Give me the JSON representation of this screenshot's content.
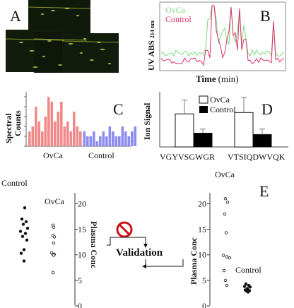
{
  "panels": {
    "A": {
      "letter": "A"
    },
    "B": {
      "letter": "B",
      "legend": [
        {
          "name": "OvCa",
          "color": "#7dd87d"
        },
        {
          "name": "Control",
          "color": "#e0306a"
        }
      ],
      "ylabel_main": "UV ABS",
      "ylabel_sub": "214 nm",
      "xlabel_main": "Time",
      "xlabel_unit": "(min)"
    },
    "C": {
      "letter": "C",
      "ylabel_1": "Spectral",
      "ylabel_2": "Counts",
      "xlabel_ovca": "OvCa",
      "xlabel_control": "Control",
      "colors": {
        "ovca": "#f08a8a",
        "control": "#8c8cf0"
      }
    },
    "D": {
      "letter": "D",
      "ylabel": "Ion Signal",
      "legend": [
        {
          "name": "OvCa",
          "color": "#ffffff"
        },
        {
          "name": "Control",
          "color": "#000000"
        }
      ],
      "xlabels": [
        "VGYVSGWGR",
        "VTSIQDWVQK"
      ]
    },
    "E": {
      "letter": "E",
      "validation": "Validation",
      "plasma_conc": "Plasma Conc",
      "left_group_control": "Control",
      "left_group_ovca": "OvCa",
      "right_group_ovca": "OvCa",
      "right_group_control": "Control",
      "left_ticks": [
        "20",
        "15",
        "10",
        "5",
        "0"
      ],
      "right_ticks": [
        "20",
        "15",
        "10",
        "5",
        "0"
      ]
    }
  },
  "chart_data": [
    {
      "type": "bar",
      "panel": "C",
      "series": [
        {
          "name": "OvCa",
          "values": [
            3,
            4,
            8,
            5,
            3,
            6,
            10,
            9,
            5,
            7,
            9,
            4,
            5,
            3,
            7,
            4,
            3
          ]
        },
        {
          "name": "Control",
          "values": [
            3,
            2,
            2,
            3,
            1,
            2,
            3,
            2,
            4,
            3,
            2,
            2,
            4,
            3,
            2,
            3,
            4
          ]
        }
      ]
    },
    {
      "type": "bar",
      "panel": "D",
      "categories": [
        "VGYVSGWGR",
        "VTSIQDWVQK"
      ],
      "series": [
        {
          "name": "OvCa",
          "values": [
            2.4,
            2.5
          ],
          "errors": [
            1.0,
            1.1
          ]
        },
        {
          "name": "Control",
          "values": [
            1.0,
            0.9
          ],
          "errors": [
            0.3,
            0.4
          ]
        }
      ]
    },
    {
      "type": "scatter",
      "panel": "E-left",
      "yrange": [
        0,
        20
      ],
      "series": [
        {
          "name": "Control",
          "values": [
            19.2,
            17.0,
            16.5,
            16.0,
            15.2,
            14.6,
            14.2,
            13.6,
            12.9,
            11.0,
            10.3,
            8.8
          ]
        },
        {
          "name": "OvCa",
          "values": [
            15.8,
            15.4,
            13.8,
            13.5,
            12.3,
            10.4,
            10.1,
            10.1,
            9.9,
            6.5
          ]
        }
      ]
    },
    {
      "type": "scatter",
      "panel": "E-right",
      "yrange": [
        0,
        20
      ],
      "series": [
        {
          "name": "OvCa",
          "values": [
            21.0,
            20.3,
            18.0,
            14.3,
            9.9,
            9.6,
            9.4,
            6.9,
            5.0,
            4.0
          ]
        },
        {
          "name": "Control",
          "values": [
            4.3,
            4.0,
            3.8,
            3.7,
            3.4,
            3.1,
            3.0,
            2.9,
            2.7
          ]
        }
      ]
    }
  ]
}
